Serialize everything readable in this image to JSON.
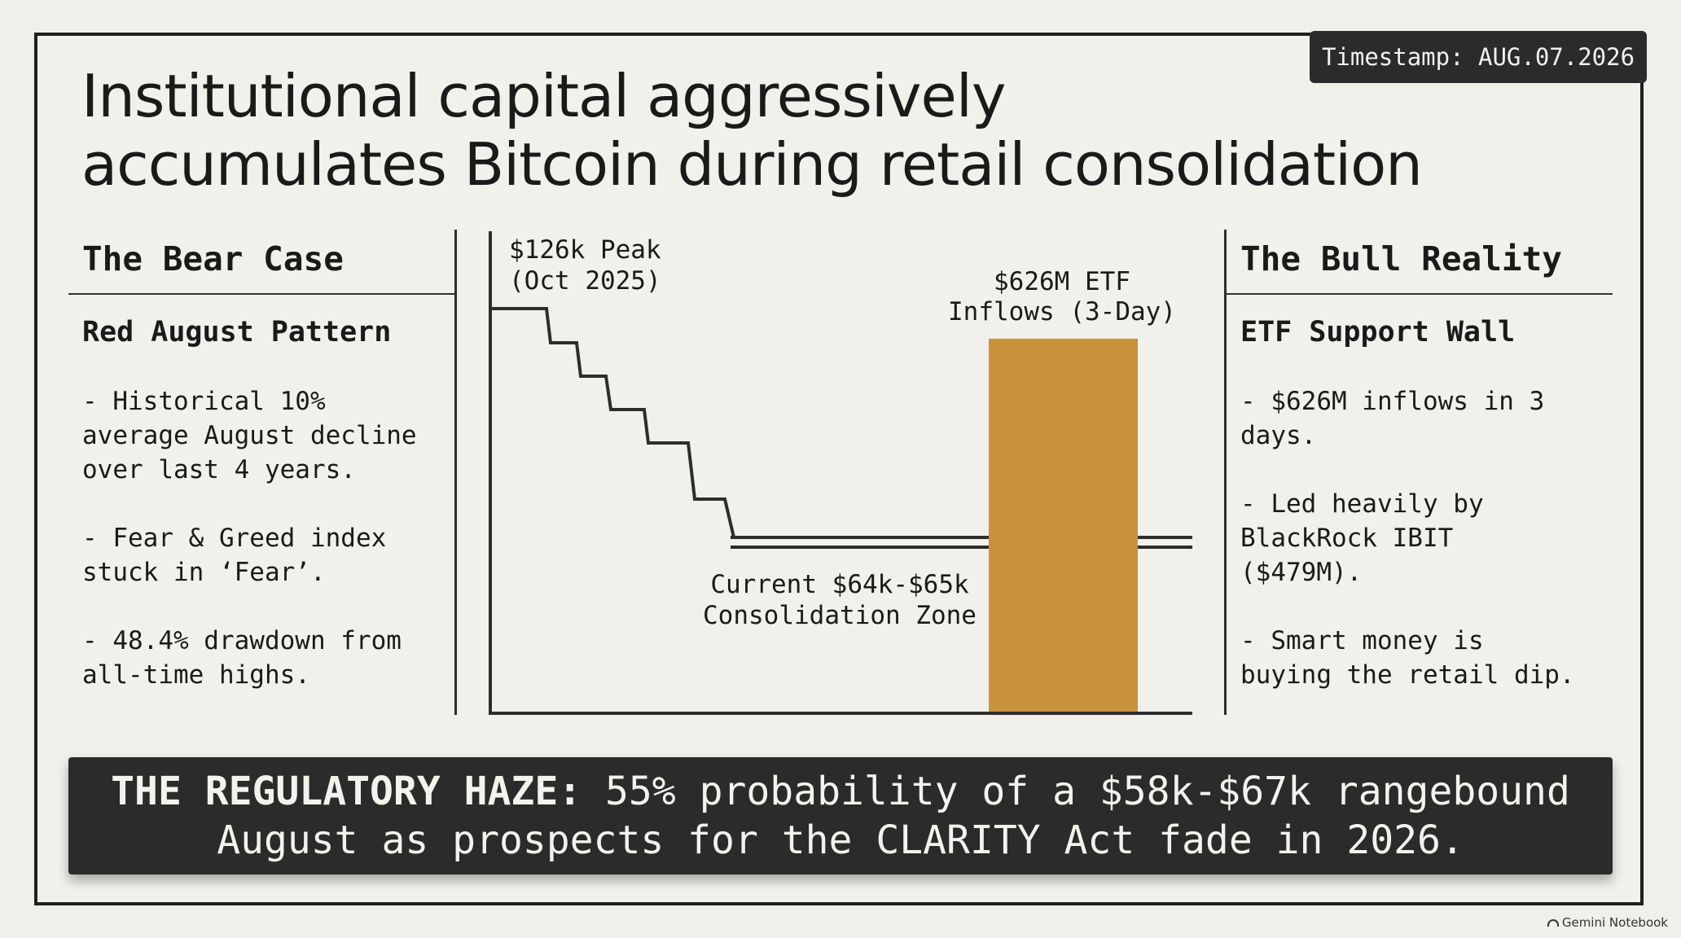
{
  "timestamp": "Timestamp: AUG.07.2026",
  "title": {
    "line1": "Institutional capital aggressively",
    "line2": "accumulates Bitcoin during retail consolidation"
  },
  "bear": {
    "heading": "The Bear Case",
    "subheading": "Red August Pattern",
    "bullets": [
      "- Historical 10%\naverage August decline\nover last 4 years.",
      "- Fear & Greed index\nstuck in ‘Fear’.",
      "- 48.4% drawdown from\nall-time highs."
    ]
  },
  "bull": {
    "heading": "The Bull Reality",
    "subheading": "ETF Support Wall",
    "bullets": [
      "- $626M inflows in 3\ndays.",
      "- Led heavily by\nBlackRock IBIT\n($479M).",
      "- Smart money is\nbuying the retail dip."
    ]
  },
  "chart_data": {
    "type": "line",
    "peak_label": [
      "$126k Peak",
      "(Oct 2025)"
    ],
    "bar_label": [
      "$626M ETF",
      "Inflows (3-Day)"
    ],
    "zone_label": [
      "Current $64k-$65k",
      "Consolidation Zone"
    ],
    "bar_color": "#c8923a"
  },
  "banner": {
    "bold": "THE REGULATORY HAZE:",
    "rest1": " 55% probability of a $58k-$67k rangebound",
    "line2": "August as prospects for the CLARITY Act fade in 2026."
  },
  "watermark": "Gemini Notebook"
}
